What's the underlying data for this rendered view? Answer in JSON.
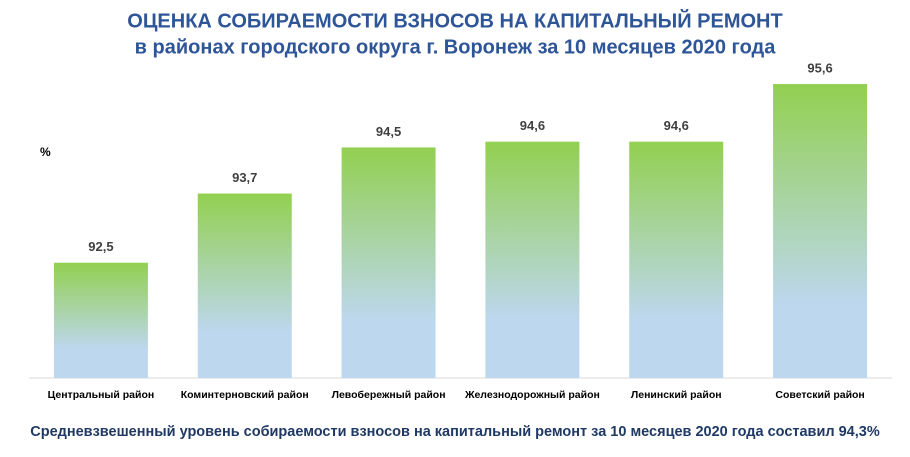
{
  "chart_data": {
    "type": "bar",
    "title": "ОЦЕНКА СОБИРАЕМОСТИ ВЗНОСОВ НА КАПИТАЛЬНЫЙ РЕМОНТ",
    "subtitle": "в районах городского округа г. Воронеж за 10 месяцев 2020 года",
    "y_label": "%",
    "categories": [
      "Центральный район",
      "Коминтерновский район",
      "Левобережный район",
      "Железнодорожный район",
      "Ленинский район",
      "Советский район"
    ],
    "values": [
      92.5,
      93.7,
      94.5,
      94.6,
      94.6,
      95.6
    ],
    "value_labels": [
      "92,5",
      "93,7",
      "94,5",
      "94,6",
      "94,6",
      "95,6"
    ],
    "gradient": [
      "#92d050",
      "#bdd7ee"
    ],
    "ylim": [
      90.5,
      96
    ],
    "note": "Средневзвешенный уровень собираемости взносов на капитальный ремонт за 10 месяцев 2020 года составил 94,3%"
  }
}
